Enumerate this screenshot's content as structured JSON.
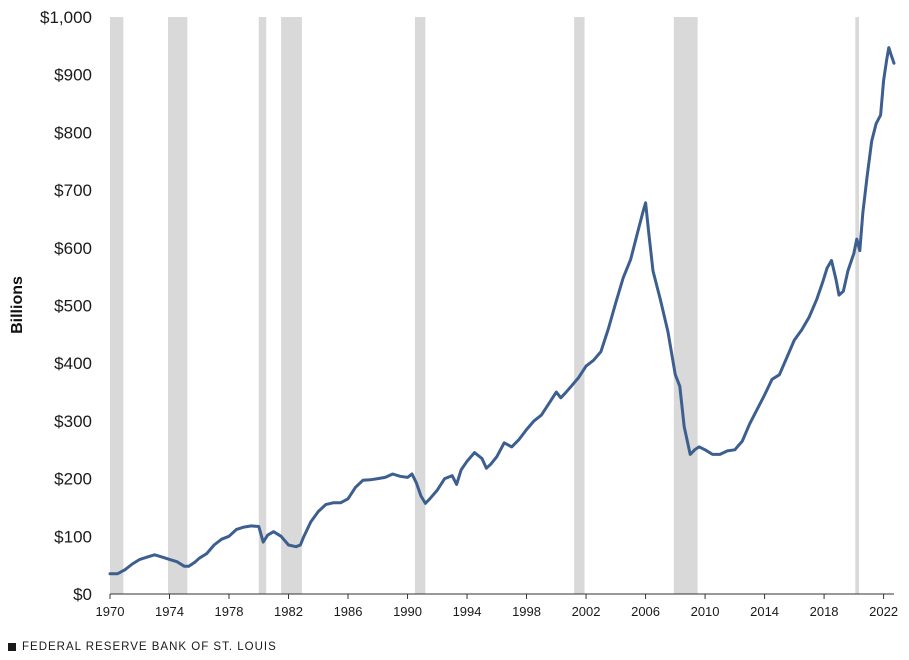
{
  "footer": {
    "text": "FEDERAL RESERVE BANK OF ST. LOUIS",
    "icon": "square-icon"
  },
  "chart_data": {
    "type": "line",
    "title": "",
    "xlabel": "",
    "ylabel": "Billions",
    "ylim": [
      0,
      1000
    ],
    "xlim": [
      1970,
      2022.7
    ],
    "yticks": [
      0,
      100,
      200,
      300,
      400,
      500,
      600,
      700,
      800,
      900,
      1000
    ],
    "ytick_labels": [
      "$0",
      "$100",
      "$200",
      "$300",
      "$400",
      "$500",
      "$600",
      "$700",
      "$800",
      "$900",
      "$1,000"
    ],
    "xticks": [
      1970,
      1974,
      1978,
      1982,
      1986,
      1990,
      1994,
      1998,
      2002,
      2006,
      2010,
      2014,
      2018,
      2022
    ],
    "xtick_labels": [
      "1970",
      "1974",
      "1978",
      "1982",
      "1986",
      "1990",
      "1994",
      "1998",
      "2002",
      "2006",
      "2010",
      "2014",
      "2018",
      "2022"
    ],
    "grid": false,
    "legend": "none",
    "colors": {
      "line": "#3c5f8f",
      "recession": "#d9d9d9"
    },
    "recessions": [
      [
        1970.0,
        1970.9
      ],
      [
        1973.9,
        1975.2
      ],
      [
        1980.0,
        1980.5
      ],
      [
        1981.5,
        1982.9
      ],
      [
        1990.5,
        1991.2
      ],
      [
        2001.2,
        2001.9
      ],
      [
        2007.9,
        2009.5
      ],
      [
        2020.1,
        2020.35
      ]
    ],
    "series": [
      {
        "x": [
          1970.0,
          1970.5,
          1971.0,
          1971.5,
          1972.0,
          1972.5,
          1973.0,
          1973.5,
          1974.0,
          1974.5,
          1975.0,
          1975.3,
          1975.7,
          1976.0,
          1976.5,
          1977.0,
          1977.5,
          1978.0,
          1978.5,
          1979.0,
          1979.5,
          1980.0,
          1980.3,
          1980.6,
          1981.0,
          1981.5,
          1982.0,
          1982.5,
          1982.8,
          1983.0,
          1983.5,
          1984.0,
          1984.5,
          1985.0,
          1985.5,
          1986.0,
          1986.5,
          1987.0,
          1987.5,
          1988.0,
          1988.5,
          1989.0,
          1989.5,
          1990.0,
          1990.3,
          1990.6,
          1990.9,
          1991.2,
          1991.5,
          1992.0,
          1992.5,
          1993.0,
          1993.3,
          1993.6,
          1994.0,
          1994.5,
          1995.0,
          1995.3,
          1995.6,
          1996.0,
          1996.5,
          1997.0,
          1997.5,
          1998.0,
          1998.5,
          1999.0,
          1999.5,
          2000.0,
          2000.3,
          2000.6,
          2001.0,
          2001.5,
          2002.0,
          2002.5,
          2003.0,
          2003.5,
          2004.0,
          2004.5,
          2005.0,
          2005.5,
          2005.8,
          2006.0,
          2006.2,
          2006.5,
          2007.0,
          2007.5,
          2008.0,
          2008.3,
          2008.6,
          2009.0,
          2009.3,
          2009.6,
          2010.0,
          2010.5,
          2011.0,
          2011.5,
          2012.0,
          2012.5,
          2013.0,
          2013.5,
          2014.0,
          2014.5,
          2015.0,
          2015.5,
          2016.0,
          2016.5,
          2017.0,
          2017.5,
          2017.9,
          2018.2,
          2018.5,
          2018.8,
          2019.0,
          2019.3,
          2019.6,
          2020.0,
          2020.2,
          2020.4,
          2020.6,
          2020.9,
          2021.2,
          2021.5,
          2021.8,
          2022.0,
          2022.2,
          2022.35,
          2022.5,
          2022.7
        ],
        "values": [
          35,
          35,
          42,
          52,
          60,
          64,
          68,
          64,
          60,
          56,
          48,
          48,
          55,
          62,
          70,
          85,
          95,
          100,
          112,
          116,
          118,
          117,
          90,
          102,
          108,
          100,
          85,
          82,
          85,
          98,
          125,
          143,
          155,
          158,
          158,
          165,
          185,
          197,
          198,
          200,
          202,
          208,
          204,
          202,
          208,
          192,
          170,
          157,
          165,
          180,
          200,
          205,
          190,
          215,
          230,
          245,
          235,
          218,
          225,
          238,
          262,
          255,
          268,
          285,
          300,
          310,
          330,
          350,
          340,
          348,
          360,
          375,
          395,
          405,
          420,
          460,
          505,
          548,
          580,
          630,
          660,
          678,
          630,
          560,
          510,
          455,
          380,
          360,
          290,
          242,
          250,
          255,
          250,
          242,
          242,
          248,
          250,
          265,
          295,
          320,
          345,
          372,
          380,
          410,
          440,
          458,
          480,
          510,
          540,
          565,
          578,
          545,
          518,
          525,
          560,
          590,
          615,
          595,
          660,
          725,
          785,
          815,
          830,
          890,
          925,
          947,
          935,
          920
        ]
      }
    ]
  }
}
